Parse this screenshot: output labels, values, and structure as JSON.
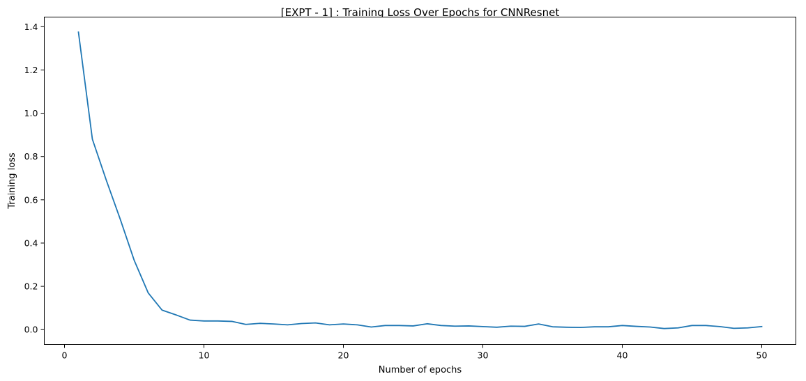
{
  "chart_data": {
    "type": "line",
    "title": "[EXPT - 1] : Training Loss Over Epochs for CNNResnet",
    "xlabel": "Number of epochs",
    "ylabel": "Training loss",
    "xlim": [
      -1.45,
      52.45
    ],
    "ylim": [
      -0.0685,
      1.4445
    ],
    "xticks": [
      0,
      10,
      20,
      30,
      40,
      50
    ],
    "xtick_labels": [
      "0",
      "10",
      "20",
      "30",
      "40",
      "50"
    ],
    "yticks": [
      0.0,
      0.2,
      0.4,
      0.6,
      0.8,
      1.0,
      1.2,
      1.4
    ],
    "ytick_labels": [
      "0.0",
      "0.2",
      "0.4",
      "0.6",
      "0.8",
      "1.0",
      "1.2",
      "1.4"
    ],
    "grid": false,
    "legend": "none",
    "line_color": "#1f77b4",
    "series": [
      {
        "x": [
          1,
          2,
          3,
          4,
          5,
          6,
          7,
          8,
          9,
          10,
          11,
          12,
          13,
          14,
          15,
          16,
          17,
          18,
          19,
          20,
          21,
          22,
          23,
          24,
          25,
          26,
          27,
          28,
          29,
          30,
          31,
          32,
          33,
          34,
          35,
          36,
          37,
          38,
          39,
          40,
          41,
          42,
          43,
          44,
          45,
          46,
          47,
          48,
          49,
          50
        ],
        "values": [
          1.375,
          0.88,
          0.69,
          0.51,
          0.32,
          0.17,
          0.09,
          0.068,
          0.044,
          0.04,
          0.04,
          0.038,
          0.024,
          0.029,
          0.026,
          0.022,
          0.028,
          0.031,
          0.022,
          0.026,
          0.022,
          0.012,
          0.019,
          0.019,
          0.017,
          0.027,
          0.019,
          0.016,
          0.017,
          0.014,
          0.011,
          0.016,
          0.015,
          0.026,
          0.013,
          0.011,
          0.01,
          0.013,
          0.013,
          0.019,
          0.015,
          0.012,
          0.005,
          0.008,
          0.019,
          0.019,
          0.014,
          0.006,
          0.008,
          0.014
        ]
      }
    ]
  }
}
